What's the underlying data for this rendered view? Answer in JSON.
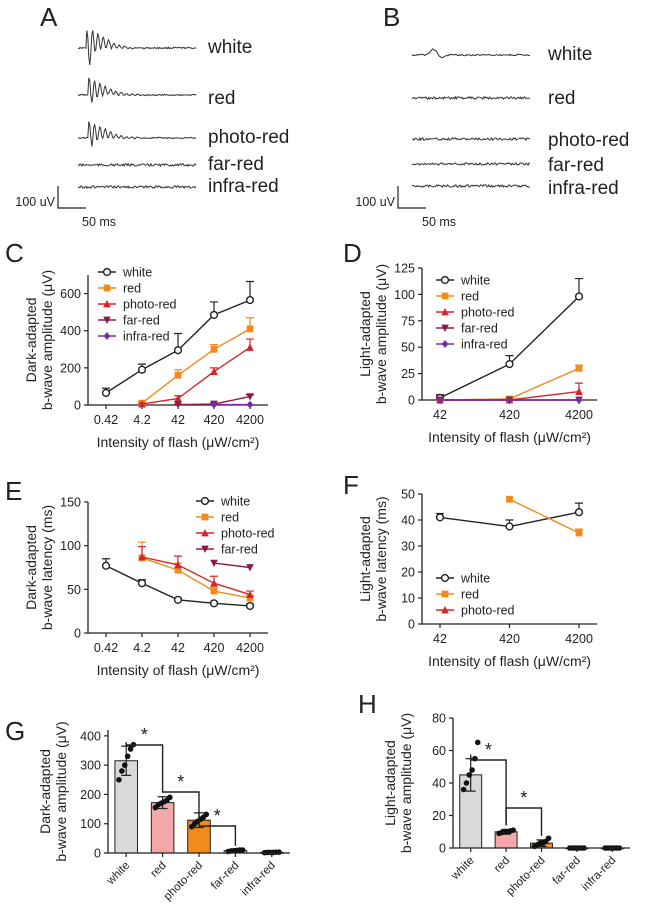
{
  "chart_data": [
    {
      "panel": "A",
      "type": "line",
      "description_labels": [
        "white",
        "red",
        "photo-red",
        "far-red",
        "infra-red"
      ],
      "scale_bar": {
        "amplitude": "100 uV",
        "time": "50 ms"
      }
    },
    {
      "panel": "B",
      "type": "line",
      "description_labels": [
        "white",
        "red",
        "photo-red",
        "far-red",
        "infra-red"
      ],
      "scale_bar": {
        "amplitude": "100 uV",
        "time": "50 ms"
      }
    },
    {
      "panel": "C",
      "type": "line",
      "ylabel": [
        "Dark-adapted",
        "b-wave amplitude (μV)"
      ],
      "xlabel": "Intensity of flash (μW/cm²)",
      "categories": [
        "0.42",
        "4.2",
        "42",
        "420",
        "4200"
      ],
      "ylim": [
        0,
        700
      ],
      "yticks": [
        0,
        200,
        400,
        600
      ],
      "series": [
        {
          "name": "white",
          "color": "#222222",
          "marker": "circle",
          "values": [
            65,
            190,
            295,
            485,
            565
          ],
          "err": [
            25,
            30,
            90,
            70,
            100
          ]
        },
        {
          "name": "red",
          "color": "#f28a1c",
          "marker": "square",
          "values": [
            null,
            10,
            160,
            300,
            410
          ],
          "err": [
            0,
            10,
            30,
            25,
            60
          ]
        },
        {
          "name": "photo-red",
          "color": "#d62728",
          "marker": "triangle",
          "values": [
            null,
            5,
            35,
            180,
            310
          ],
          "err": [
            0,
            5,
            15,
            20,
            45
          ]
        },
        {
          "name": "far-red",
          "color": "#8b1a4a",
          "marker": "tri-down",
          "values": [
            null,
            null,
            2,
            5,
            45
          ],
          "err": [
            0,
            0,
            2,
            5,
            10
          ]
        },
        {
          "name": "infra-red",
          "color": "#7a2aa0",
          "marker": "diamond",
          "values": [
            null,
            null,
            null,
            2,
            2
          ],
          "err": [
            0,
            0,
            0,
            0,
            0
          ]
        }
      ]
    },
    {
      "panel": "D",
      "type": "line",
      "ylabel": [
        "Light-adapted",
        "b-wave amplitude (μV)"
      ],
      "xlabel": "Intensity of flash (μW/cm²)",
      "categories": [
        "42",
        "420",
        "4200"
      ],
      "ylim": [
        0,
        125
      ],
      "yticks": [
        0,
        25,
        50,
        75,
        100,
        125
      ],
      "series": [
        {
          "name": "white",
          "color": "#222222",
          "marker": "circle",
          "values": [
            2,
            34,
            98
          ],
          "err": [
            3,
            8,
            17
          ]
        },
        {
          "name": "red",
          "color": "#f28a1c",
          "marker": "square",
          "values": [
            0,
            1,
            30
          ],
          "err": [
            0,
            1,
            3
          ]
        },
        {
          "name": "photo-red",
          "color": "#d62728",
          "marker": "triangle",
          "values": [
            0,
            0,
            8
          ],
          "err": [
            0,
            0,
            8
          ]
        },
        {
          "name": "far-red",
          "color": "#8b1a4a",
          "marker": "tri-down",
          "values": [
            0,
            0,
            0
          ],
          "err": [
            0,
            0,
            0
          ]
        },
        {
          "name": "infra-red",
          "color": "#7a2aa0",
          "marker": "diamond",
          "values": [
            0,
            0,
            0
          ],
          "err": [
            0,
            0,
            0
          ]
        }
      ]
    },
    {
      "panel": "E",
      "type": "line",
      "ylabel": [
        "Dark-adapted",
        "b-wave latency (ms)"
      ],
      "xlabel": "Intensity of flash (μW/cm²)",
      "categories": [
        "0.42",
        "4.2",
        "42",
        "420",
        "4200"
      ],
      "ylim": [
        0,
        150
      ],
      "yticks": [
        0,
        50,
        100,
        150
      ],
      "series": [
        {
          "name": "white",
          "color": "#222222",
          "marker": "circle",
          "values": [
            77,
            57,
            38,
            34,
            31
          ],
          "err": [
            8,
            4,
            2,
            2,
            2
          ]
        },
        {
          "name": "red",
          "color": "#f28a1c",
          "marker": "square",
          "values": [
            null,
            86,
            72,
            48,
            40
          ],
          "err": [
            0,
            18,
            8,
            5,
            3
          ]
        },
        {
          "name": "photo-red",
          "color": "#d62728",
          "marker": "triangle",
          "values": [
            null,
            87,
            78,
            57,
            44
          ],
          "err": [
            0,
            12,
            10,
            8,
            4
          ]
        },
        {
          "name": "far-red",
          "color": "#8b1a4a",
          "marker": "tri-down",
          "values": [
            null,
            null,
            null,
            80,
            75
          ],
          "err": [
            0,
            0,
            0,
            0,
            0
          ]
        }
      ]
    },
    {
      "panel": "F",
      "type": "line",
      "ylabel": [
        "Light-adapted",
        "b-wave latency (ms)"
      ],
      "xlabel": "Intensity of flash (μW/cm²)",
      "categories": [
        "42",
        "420",
        "4200"
      ],
      "ylim": [
        0,
        50
      ],
      "yticks": [
        0,
        10,
        20,
        30,
        40,
        50
      ],
      "series": [
        {
          "name": "white",
          "color": "#222222",
          "marker": "circle",
          "values": [
            41,
            37.5,
            43
          ],
          "err": [
            1.5,
            2.5,
            3.5
          ]
        },
        {
          "name": "red",
          "color": "#f28a1c",
          "marker": "square",
          "values": [
            null,
            48,
            35
          ],
          "err": [
            0,
            0,
            1.5
          ]
        },
        {
          "name": "photo-red",
          "color": "#d62728",
          "marker": "triangle",
          "values": [
            null,
            null,
            null
          ],
          "err": [
            0,
            0,
            0
          ]
        }
      ]
    },
    {
      "panel": "G",
      "type": "bar",
      "ylabel": [
        "Dark-adapted",
        "b-wave amplitude (μV)"
      ],
      "categories": [
        "white",
        "red",
        "photo-red",
        "far-red",
        "infra-red"
      ],
      "values": [
        315,
        172,
        112,
        8,
        2
      ],
      "err": [
        50,
        20,
        25,
        3,
        1
      ],
      "colors": [
        "#d9d9d9",
        "#f4a8a8",
        "#f28a1c",
        "#ffffff",
        "#ffffff"
      ],
      "points": [
        [
          250,
          280,
          300,
          330,
          355,
          370
        ],
        [
          155,
          165,
          170,
          175,
          180,
          190
        ],
        [
          90,
          100,
          108,
          115,
          122,
          132
        ],
        [
          5,
          7,
          8,
          9,
          10,
          10
        ],
        [
          1,
          2,
          2,
          2,
          3,
          3
        ]
      ],
      "ylim": [
        0,
        420
      ],
      "yticks": [
        0,
        100,
        200,
        300,
        400
      ],
      "significance": [
        {
          "from": 0,
          "to": 1,
          "label": "*"
        },
        {
          "from": 1,
          "to": 2,
          "label": "*"
        },
        {
          "from": 2,
          "to": 3,
          "label": "*"
        }
      ]
    },
    {
      "panel": "H",
      "type": "bar",
      "ylabel": [
        "Light-adapted",
        "b-wave amplitude (μV)"
      ],
      "categories": [
        "white",
        "red",
        "photo-red",
        "far-red",
        "infra-red"
      ],
      "values": [
        45,
        10,
        3,
        0,
        0
      ],
      "err": [
        10,
        1.5,
        2,
        0,
        0
      ],
      "colors": [
        "#d9d9d9",
        "#f4a8a8",
        "#f28a1c",
        "#ffffff",
        "#ffffff"
      ],
      "points": [
        [
          36,
          40,
          45,
          48,
          55,
          65
        ],
        [
          9,
          9.5,
          10,
          10,
          10.5,
          11
        ],
        [
          1,
          2,
          3,
          3,
          4,
          6
        ],
        [
          0,
          0,
          0,
          0,
          0,
          0
        ],
        [
          0,
          0,
          0,
          0,
          0,
          0
        ]
      ],
      "ylim": [
        0,
        80
      ],
      "yticks": [
        0,
        20,
        40,
        60,
        80
      ],
      "significance": [
        {
          "from": 0,
          "to": 1,
          "label": "*"
        },
        {
          "from": 1,
          "to": 2,
          "label": "*"
        }
      ]
    }
  ]
}
